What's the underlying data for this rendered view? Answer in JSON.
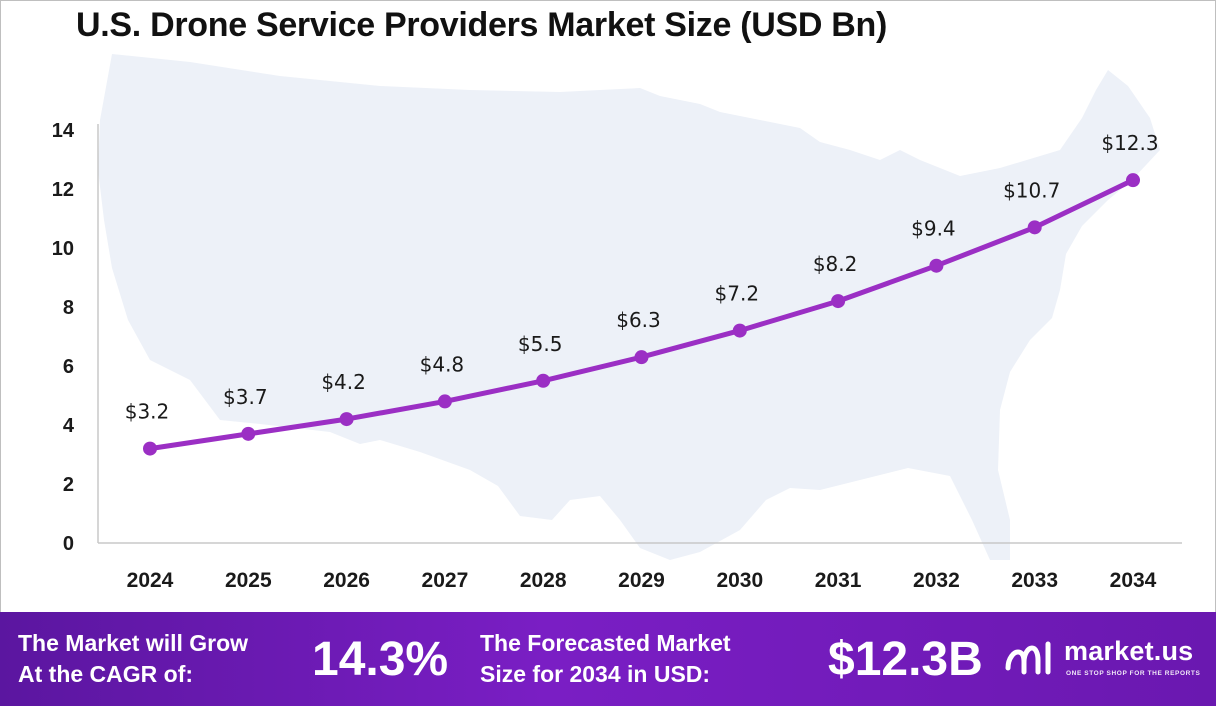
{
  "title": "U.S. Drone Service Providers Market Size (USD Bn)",
  "colors": {
    "line": "#9b2fc4",
    "marker": "#9b2fc4",
    "map": "#edf1f8",
    "footer_start": "#5b16a0",
    "footer_end": "#7a1ec4",
    "axis": "#c8c8c8"
  },
  "chart_data": {
    "type": "line",
    "title": "U.S. Drone Service Providers Market Size (USD Bn)",
    "categories": [
      "2024",
      "2025",
      "2026",
      "2027",
      "2028",
      "2029",
      "2030",
      "2031",
      "2032",
      "2033",
      "2034"
    ],
    "series": [
      {
        "name": "Market Size (USD Bn)",
        "values": [
          3.2,
          3.7,
          4.2,
          4.8,
          5.5,
          6.3,
          7.2,
          8.2,
          9.4,
          10.7,
          12.3
        ],
        "labels": [
          "$3.2",
          "$3.7",
          "$4.2",
          "$4.8",
          "$5.5",
          "$6.3",
          "$7.2",
          "$8.2",
          "$9.4",
          "$10.7",
          "$12.3"
        ]
      }
    ],
    "yticks": [
      0,
      2,
      4,
      6,
      8,
      10,
      12,
      14
    ],
    "ylim": [
      0,
      14
    ],
    "xlabel": "",
    "ylabel": "",
    "grid": false
  },
  "footer": {
    "cagr_label_line1": "The Market will Grow",
    "cagr_label_line2": "At the CAGR of:",
    "cagr_value": "14.3%",
    "size_label_line1": "The Forecasted Market",
    "size_label_line2": "Size for 2034 in USD:",
    "size_value": "$12.3B",
    "logo_name": "market.us",
    "logo_tagline": "ONE STOP SHOP FOR THE REPORTS",
    "logo_icon": "market-us-logo-icon"
  }
}
